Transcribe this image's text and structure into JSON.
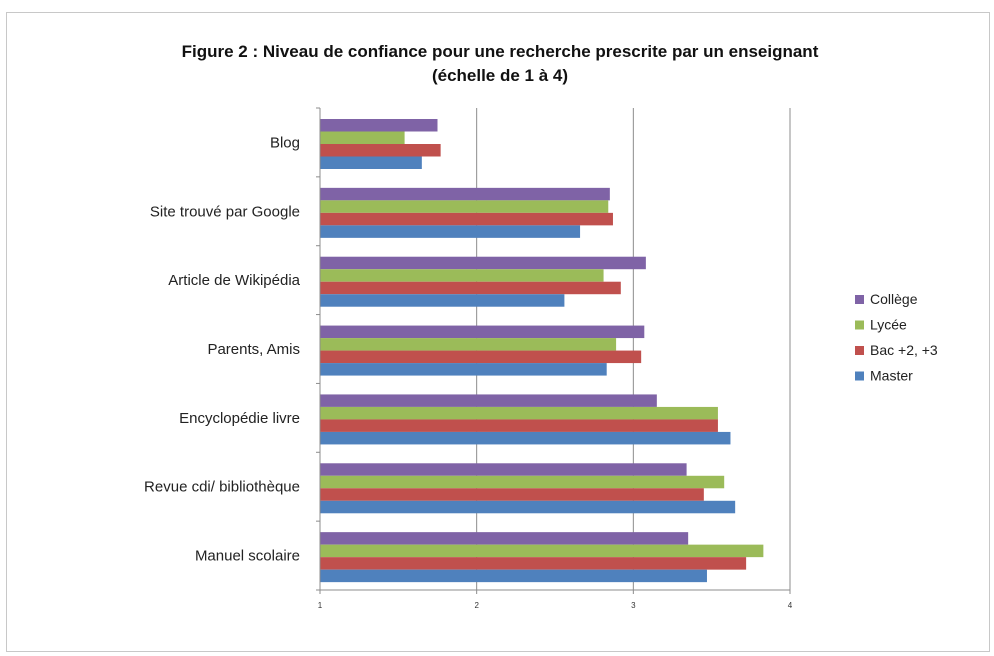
{
  "chart_data": {
    "type": "bar",
    "orientation": "horizontal",
    "title": "Figure 2 : Niveau de confiance pour une recherche prescrite par un enseignant",
    "subtitle": "(échelle de 1 à 4)",
    "categories": [
      "Blog",
      "Site trouvé par Google",
      "Article de Wikipédia",
      "Parents, Amis",
      "Encyclopédie livre",
      "Revue cdi/ bibliothèque",
      "Manuel scolaire"
    ],
    "series": [
      {
        "name": "Collège",
        "color": "#7f63a6",
        "values": [
          1.75,
          2.85,
          3.08,
          3.07,
          3.15,
          3.34,
          3.35
        ]
      },
      {
        "name": "Lycée",
        "color": "#9bbb59",
        "values": [
          1.54,
          2.84,
          2.81,
          2.89,
          3.54,
          3.58,
          3.83
        ]
      },
      {
        "name": "Bac +2, +3",
        "color": "#c0504d",
        "values": [
          1.77,
          2.87,
          2.92,
          3.05,
          3.54,
          3.45,
          3.72
        ]
      },
      {
        "name": "Master",
        "color": "#4f81bd",
        "values": [
          1.65,
          2.66,
          2.56,
          2.83,
          3.62,
          3.65,
          3.47
        ]
      }
    ],
    "xlim": [
      1,
      4
    ],
    "xticks": [
      "1",
      "2",
      "3",
      "4"
    ],
    "grid": true,
    "legend_position": "right"
  }
}
